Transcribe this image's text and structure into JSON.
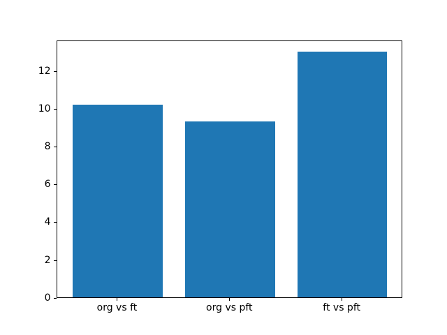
{
  "figure": {
    "background_color": "#ffffff",
    "bar_color": "#1f77b4",
    "spine_color": "#000000",
    "tick_color": "#000000",
    "text_color": "#000000"
  },
  "chart_data": {
    "type": "bar",
    "categories": [
      "org vs ft",
      "org vs pft",
      "ft vs pft"
    ],
    "values": [
      10.2,
      9.3,
      13.0
    ],
    "title": "",
    "xlabel": "",
    "ylabel": "",
    "ylim": [
      0,
      13.65
    ],
    "yticks": [
      0,
      2,
      4,
      6,
      8,
      10,
      12
    ],
    "bar_width_fraction": 0.8,
    "x_margin_fraction": 0.05,
    "grid": false,
    "legend": null
  }
}
